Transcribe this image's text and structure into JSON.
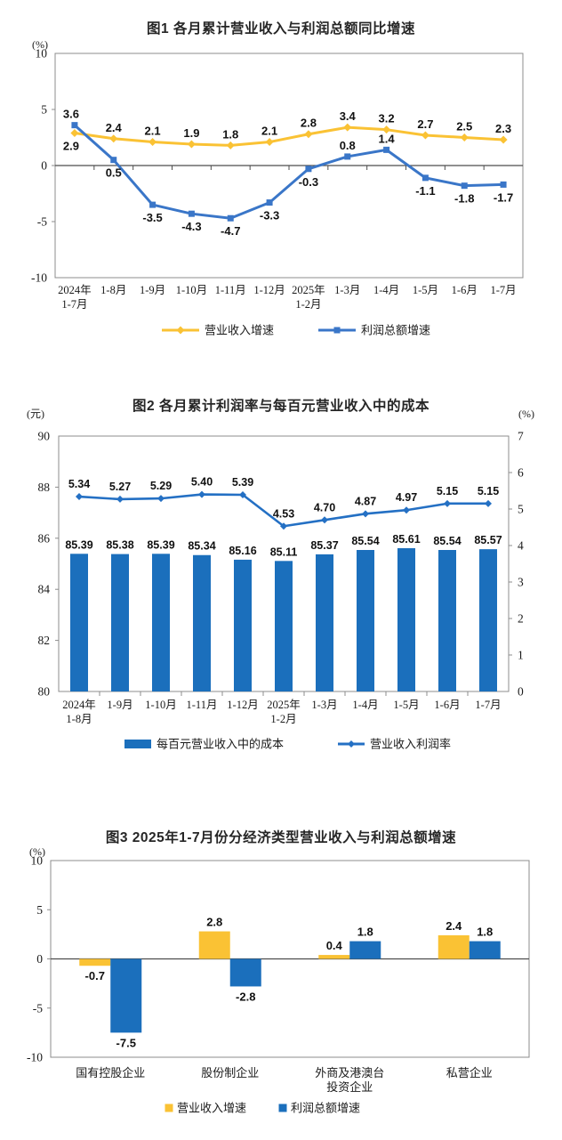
{
  "colors": {
    "yellow": "#FAC234",
    "blue": "#3A76C8",
    "bar_blue": "#1B6FBC",
    "line_blue": "#2470C4",
    "axis_border": "#8C8C8C",
    "zero_line": "#4D4D4D",
    "tick_text": "#1A1A1A",
    "label_text": "#111111"
  },
  "chart_data": [
    {
      "id": "figure1",
      "type": "line",
      "title": "图1  各月累计营业收入与利润总额同比增速",
      "unit_left": "(%)",
      "ylim": [
        -10,
        10
      ],
      "yticks": [
        10,
        5,
        0,
        -5,
        -10
      ],
      "grid": false,
      "legend_position": "bottom",
      "decimals": 1,
      "categories": [
        "2024年\n1-7月",
        "1-8月",
        "1-9月",
        "1-10月",
        "1-11月",
        "1-12月",
        "2025年\n1-2月",
        "1-3月",
        "1-4月",
        "1-5月",
        "1-6月",
        "1-7月"
      ],
      "series": [
        {
          "name": "营业收入增速",
          "color_key": "yellow",
          "marker": "diamond",
          "values": [
            2.9,
            2.4,
            2.1,
            1.9,
            1.8,
            2.1,
            2.8,
            3.4,
            3.2,
            2.7,
            2.5,
            2.3
          ],
          "label_pos": [
            "below",
            "above",
            "above",
            "above",
            "above",
            "above",
            "above",
            "above",
            "above",
            "above",
            "above",
            "above"
          ]
        },
        {
          "name": "利润总额增速",
          "color_key": "blue",
          "marker": "square",
          "values": [
            3.6,
            0.5,
            -3.5,
            -4.3,
            -4.7,
            -3.3,
            -0.3,
            0.8,
            1.4,
            -1.1,
            -1.8,
            -1.7
          ],
          "label_pos": [
            "above",
            "below",
            "below",
            "below",
            "below",
            "below",
            "below",
            "above",
            "above",
            "below",
            "below",
            "below"
          ]
        }
      ]
    },
    {
      "id": "figure2",
      "type": "bar-line",
      "title": "图2  各月累计利润率与每百元营业收入中的成本",
      "unit_left": "(元)",
      "unit_right": "(%)",
      "left_ylim": [
        80,
        90
      ],
      "left_yticks": [
        90,
        88,
        86,
        84,
        82,
        80
      ],
      "right_ylim": [
        0,
        7
      ],
      "right_yticks": [
        7,
        6,
        5,
        4,
        3,
        2,
        1,
        0
      ],
      "grid": false,
      "legend_position": "bottom",
      "decimals": 2,
      "categories": [
        "2024年\n1-8月",
        "1-9月",
        "1-10月",
        "1-11月",
        "1-12月",
        "2025年\n1-2月",
        "1-3月",
        "1-4月",
        "1-5月",
        "1-6月",
        "1-7月"
      ],
      "bar_series": {
        "name": "每百元营业收入中的成本",
        "axis": "left",
        "color_key": "bar_blue",
        "values": [
          85.39,
          85.38,
          85.39,
          85.34,
          85.16,
          85.11,
          85.37,
          85.54,
          85.61,
          85.54,
          85.57
        ]
      },
      "line_series": {
        "name": "营业收入利润率",
        "axis": "right",
        "color_key": "line_blue",
        "marker": "diamond",
        "values": [
          5.34,
          5.27,
          5.29,
          5.4,
          5.39,
          4.53,
          4.7,
          4.87,
          4.97,
          5.15,
          5.15
        ]
      }
    },
    {
      "id": "figure3",
      "type": "grouped-bar",
      "title": "图3  2025年1-7月份分经济类型营业收入与利润总额增速",
      "unit_left": "(%)",
      "ylim": [
        -10,
        10
      ],
      "yticks": [
        10,
        5,
        0,
        -5,
        -10
      ],
      "grid": false,
      "legend_position": "bottom",
      "decimals": 1,
      "categories": [
        "国有控股企业",
        "股份制企业",
        "外商及港澳台\n投资企业",
        "私营企业"
      ],
      "series": [
        {
          "name": "营业收入增速",
          "color_key": "yellow",
          "values": [
            -0.7,
            2.8,
            0.4,
            2.4
          ]
        },
        {
          "name": "利润总额增速",
          "color_key": "bar_blue",
          "values": [
            -7.5,
            -2.8,
            1.8,
            1.8
          ]
        }
      ]
    }
  ]
}
